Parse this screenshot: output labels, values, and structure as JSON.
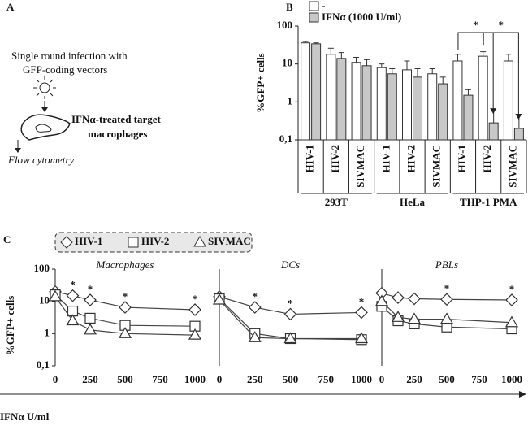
{
  "panel_labels": [
    "A",
    "B",
    "C"
  ],
  "diagram": {
    "infection": [
      "Single round infection with",
      "GFP-coding vectors"
    ],
    "target": [
      "IFNα-treated target",
      "macrophages"
    ],
    "readout": "Flow cytometry"
  },
  "chart_data": [
    {
      "type": "bar",
      "ylabel": "%GFP+ cells",
      "log_y": true,
      "ylim": [
        0.1,
        100
      ],
      "yticks": [
        {
          "value": 0.1,
          "label": "0,1"
        },
        1,
        10,
        100
      ],
      "groups": [
        "293T",
        "HeLa",
        "THP-1 PMA"
      ],
      "categories": [
        "HIV-1",
        "HIV-2",
        "SIVMAC",
        "HIV-1",
        "HIV-2",
        "SIVMAC",
        "HIV-1",
        "HIV-2",
        "SIVMAC"
      ],
      "series": [
        {
          "name": "-",
          "color": "#ffffff",
          "values": [
            36,
            18,
            11,
            8,
            7,
            5.5,
            12,
            16,
            12
          ],
          "errors": [
            3,
            8,
            4,
            2,
            5,
            2,
            6,
            5,
            6
          ]
        },
        {
          "name": "IFNα (1000 U/ml)",
          "color": "#c8c8c8",
          "values": [
            34,
            14,
            9,
            5.5,
            4.5,
            3,
            1.5,
            0.28,
            0.2
          ],
          "errors": [
            2,
            6,
            4,
            2,
            3,
            1.5,
            0.6,
            0.3,
            0.25
          ]
        }
      ],
      "annotations": [
        "*",
        "*"
      ]
    },
    {
      "type": "line",
      "title": "Macrophages",
      "log_y": true,
      "xlabel": "IFNα U/ml",
      "ylabel": "%GFP+ cells",
      "xlim": [
        0,
        1000
      ],
      "xticks": [
        0,
        250,
        500,
        750,
        1000
      ],
      "ylim": [
        0.1,
        100
      ],
      "yticks": [
        {
          "value": 0.1,
          "label": "0,1"
        },
        1,
        10,
        100
      ],
      "x": [
        0,
        125,
        250,
        500,
        1000
      ],
      "series": [
        {
          "name": "HIV-1",
          "marker": "diamond",
          "values": [
            20,
            15,
            11,
            6.5,
            5.5
          ]
        },
        {
          "name": "HIV-2",
          "marker": "square",
          "values": [
            16,
            5,
            3,
            1.8,
            1.7
          ]
        },
        {
          "name": "SIVMAC",
          "marker": "triangle",
          "values": [
            14,
            2.5,
            1.3,
            1.0,
            0.9
          ]
        }
      ],
      "annotations": [
        {
          "text": "*",
          "x": 125
        },
        {
          "text": "*",
          "x": 250
        },
        {
          "text": "*",
          "x": 500
        },
        {
          "text": "*",
          "x": 1000
        }
      ]
    },
    {
      "type": "line",
      "title": "DCs",
      "log_y": true,
      "xlim": [
        0,
        1000
      ],
      "xticks": [
        0,
        250,
        500,
        750,
        1000
      ],
      "ylim": [
        0.1,
        100
      ],
      "x": [
        0,
        250,
        500,
        1000
      ],
      "series": [
        {
          "marker": "diamond",
          "values": [
            14,
            6.5,
            4,
            4.5
          ]
        },
        {
          "marker": "square",
          "values": [
            12,
            1.0,
            0.7,
            0.65
          ]
        },
        {
          "marker": "triangle",
          "values": [
            11,
            0.75,
            0.7,
            0.7
          ]
        }
      ],
      "annotations": [
        {
          "text": "*",
          "x": 250
        },
        {
          "text": "*",
          "x": 500
        },
        {
          "text": "*",
          "x": 1000
        }
      ]
    },
    {
      "type": "line",
      "title": "PBLs",
      "log_y": true,
      "xlim": [
        0,
        1000
      ],
      "xticks": [
        0,
        250,
        500,
        750,
        1000
      ],
      "ylim": [
        0.1,
        100
      ],
      "x": [
        0,
        125,
        250,
        500,
        1000
      ],
      "series": [
        {
          "marker": "diamond",
          "values": [
            18,
            13,
            12,
            11.5,
            11
          ]
        },
        {
          "marker": "square",
          "values": [
            7,
            2.5,
            2,
            1.6,
            1.4
          ]
        },
        {
          "marker": "triangle",
          "values": [
            10,
            3.2,
            2.8,
            2.8,
            2.2
          ]
        }
      ],
      "annotations": [
        {
          "text": "*",
          "x": 500
        },
        {
          "text": "*",
          "x": 1000
        }
      ]
    }
  ]
}
